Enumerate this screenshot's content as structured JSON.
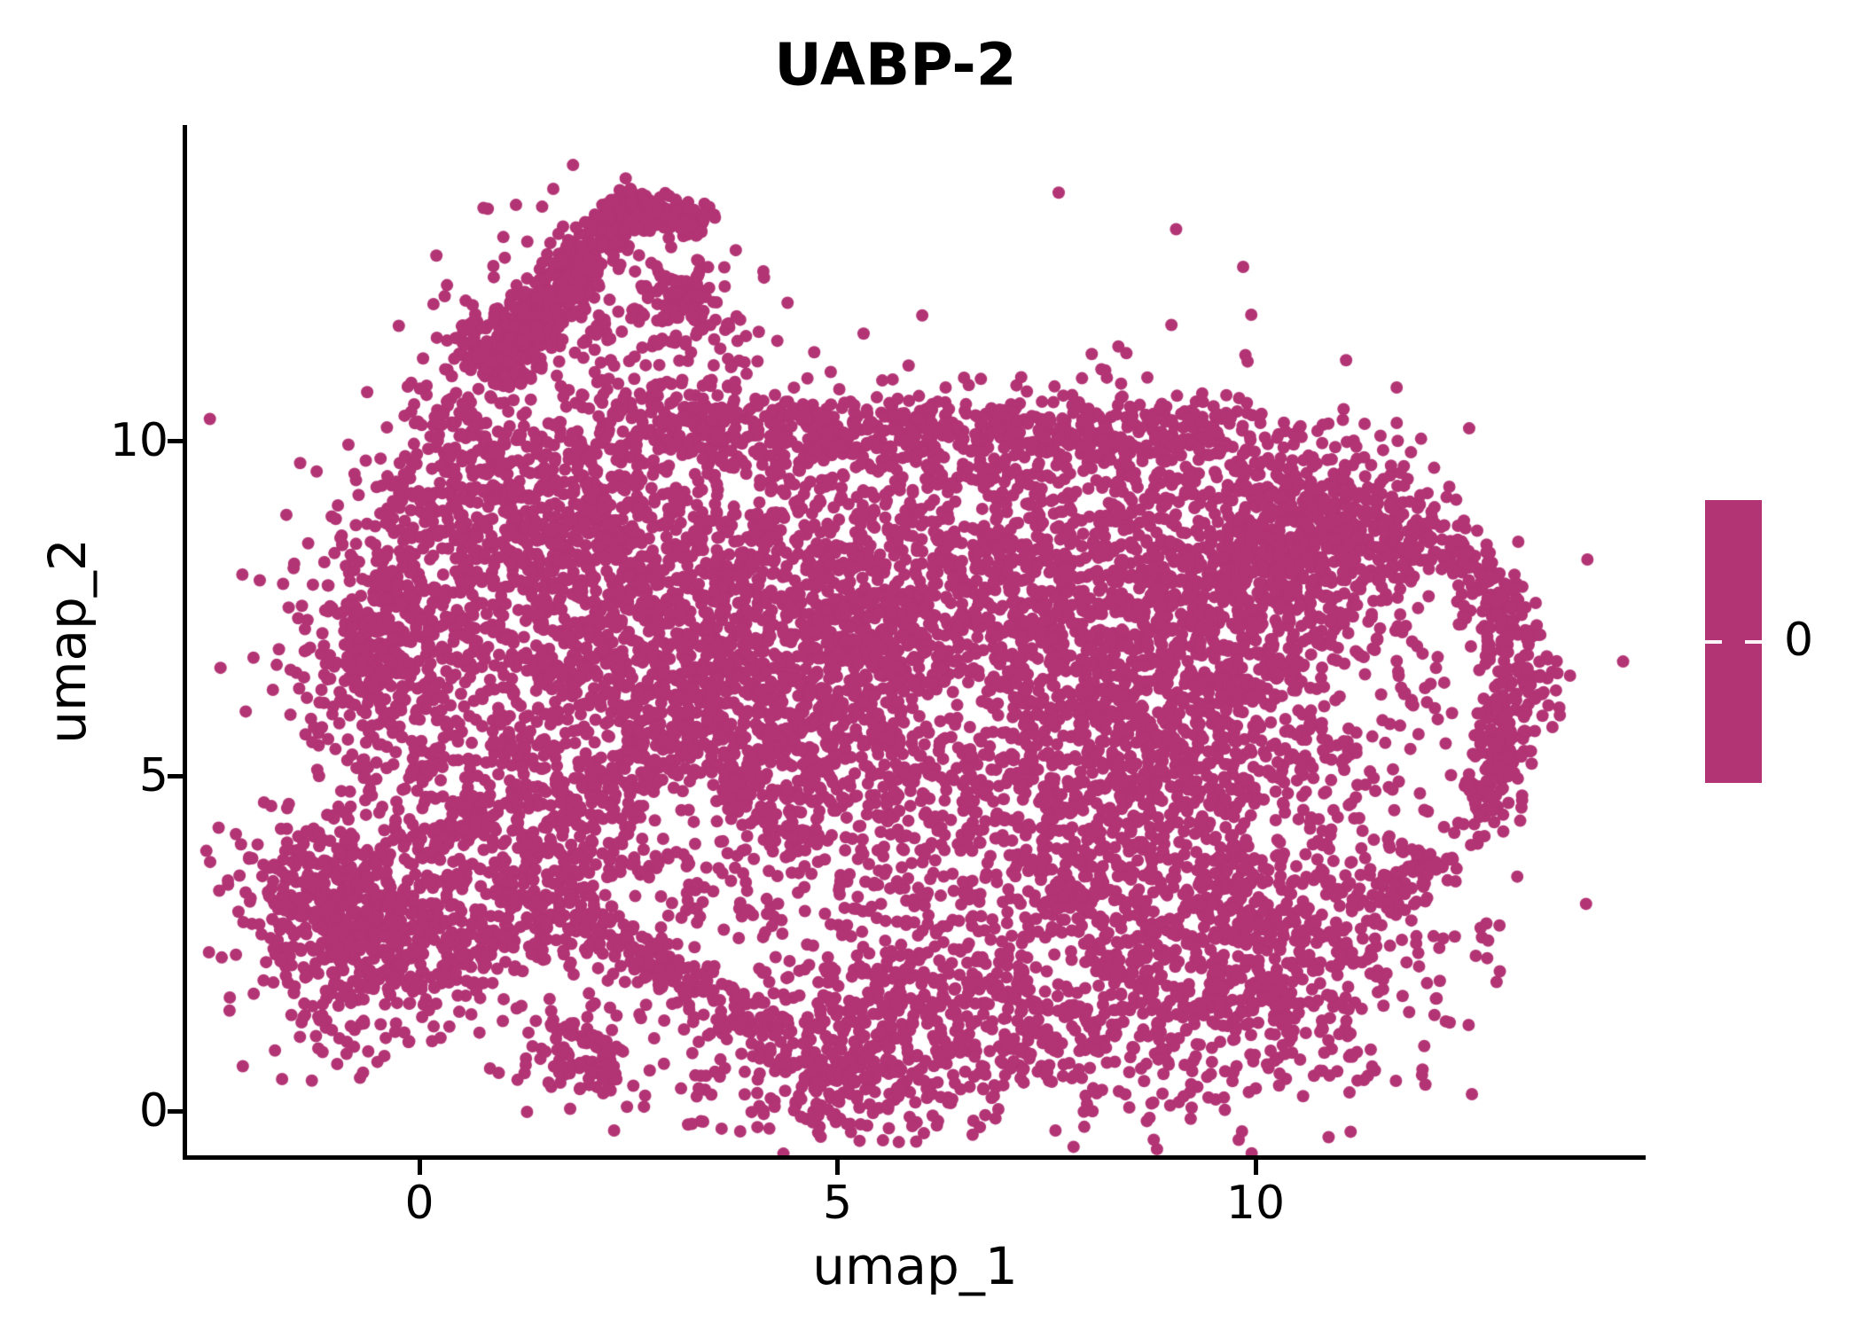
{
  "title": "UABP-2",
  "axes": {
    "x": {
      "label": "umap_1",
      "ticks": [
        "0",
        "5",
        "10"
      ],
      "tick_values": [
        0,
        5,
        10
      ]
    },
    "y": {
      "label": "umap_2",
      "ticks": [
        "0",
        "5",
        "10"
      ],
      "tick_values": [
        0,
        5,
        10
      ]
    }
  },
  "legend": {
    "label": "0",
    "color": "#B23474"
  },
  "chart_data": {
    "type": "scatter",
    "title": "UABP-2",
    "xlabel": "umap_1",
    "ylabel": "umap_2",
    "x_ticks": [
      0,
      5,
      10
    ],
    "y_ticks": [
      0,
      5,
      10
    ],
    "xlim": [
      -2.79,
      14.67
    ],
    "ylim": [
      -0.69,
      14.73
    ],
    "grid": false,
    "legend_position": "right",
    "legend_entries": [
      {
        "label": "0",
        "color": "#B23474"
      }
    ],
    "point_color": "#B23474",
    "point_radius_px": 7,
    "n_points_approx": 12500,
    "seed": 42,
    "description": "Single-color UMAP embedding (all cells expression level 0): large irregular central mass, diagonal upper-left arm, detached lower-left cluster, thin right rim with interior hole",
    "clusters": [
      {
        "kind": "segment",
        "name": "upper-arm-band",
        "x1": 0.85,
        "y1": 11.05,
        "x2": 2.45,
        "y2": 13.4,
        "jitter": 0.17,
        "n": 480
      },
      {
        "kind": "segment",
        "name": "upper-arm-hook",
        "x1": 2.45,
        "y1": 13.5,
        "x2": 3.35,
        "y2": 13.25,
        "jitter": 0.14,
        "n": 170
      },
      {
        "kind": "segment",
        "name": "main-top-band",
        "x1": 2.3,
        "y1": 10.15,
        "x2": 9.7,
        "y2": 10.1,
        "jitter": 0.3,
        "n": 650
      },
      {
        "kind": "segment",
        "name": "bottom-diagonal-band",
        "x1": 1.0,
        "y1": 3.45,
        "x2": 4.35,
        "y2": 1.15,
        "jitter": 0.2,
        "n": 240
      },
      {
        "kind": "segment",
        "name": "right-rim-1",
        "x1": 11.6,
        "y1": 9.05,
        "x2": 12.75,
        "y2": 7.9,
        "jitter": 0.22,
        "n": 120
      },
      {
        "kind": "segment",
        "name": "right-rim-2",
        "x1": 12.75,
        "y1": 7.9,
        "x2": 13.25,
        "y2": 6.55,
        "jitter": 0.22,
        "n": 110
      },
      {
        "kind": "segment",
        "name": "right-rim-3",
        "x1": 13.25,
        "y1": 6.55,
        "x2": 12.95,
        "y2": 5.2,
        "jitter": 0.22,
        "n": 100
      },
      {
        "kind": "segment",
        "name": "right-rim-4",
        "x1": 12.95,
        "y1": 5.2,
        "x2": 12.35,
        "y2": 4.05,
        "jitter": 0.22,
        "n": 90
      },
      {
        "kind": "segment",
        "name": "right-rim-5",
        "x1": 12.35,
        "y1": 4.05,
        "x2": 11.35,
        "y2": 3.15,
        "jitter": 0.25,
        "n": 90
      },
      {
        "kind": "segment",
        "name": "left-cluster-tail",
        "x1": -0.3,
        "y1": 3.85,
        "x2": 0.9,
        "y2": 4.5,
        "jitter": 0.2,
        "n": 70
      },
      {
        "kind": "gauss",
        "name": "arm-base",
        "cx": 0.95,
        "cy": 11.3,
        "sx": 0.3,
        "sy": 0.33,
        "n": 120
      },
      {
        "kind": "gauss",
        "name": "hook-drop",
        "cx": 3.2,
        "cy": 12.1,
        "sx": 0.22,
        "sy": 0.3,
        "n": 80
      },
      {
        "kind": "gauss",
        "name": "arm-scatter",
        "cx": 1.65,
        "cy": 11.6,
        "sx": 0.75,
        "sy": 0.95,
        "n": 150
      },
      {
        "kind": "gauss",
        "name": "arm-bridge-scatter",
        "cx": 2.95,
        "cy": 11.0,
        "sx": 0.75,
        "sy": 0.75,
        "n": 120
      },
      {
        "kind": "gauss",
        "name": "upper-left-column",
        "cx": 0.45,
        "cy": 10.0,
        "sx": 0.4,
        "sy": 0.6,
        "n": 100
      },
      {
        "kind": "gauss",
        "name": "upper-left-lobe",
        "cx": 1.6,
        "cy": 8.75,
        "sx": 1.05,
        "sy": 0.8,
        "n": 620
      },
      {
        "kind": "gauss",
        "name": "left-edge-lobe",
        "cx": -0.35,
        "cy": 6.9,
        "sx": 0.55,
        "sy": 0.95,
        "n": 430
      },
      {
        "kind": "gauss",
        "name": "mid-left-body",
        "cx": 2.2,
        "cy": 6.6,
        "sx": 1.2,
        "sy": 1.25,
        "n": 850
      },
      {
        "kind": "gauss",
        "name": "central-body",
        "cx": 4.8,
        "cy": 7.5,
        "sx": 1.35,
        "sy": 1.25,
        "n": 950
      },
      {
        "kind": "gauss",
        "name": "central-lower-body",
        "cx": 4.1,
        "cy": 5.0,
        "sx": 1.25,
        "sy": 1.0,
        "n": 650
      },
      {
        "kind": "gauss",
        "name": "right-body",
        "cx": 7.8,
        "cy": 7.4,
        "sx": 1.5,
        "sy": 1.35,
        "n": 1250
      },
      {
        "kind": "gauss",
        "name": "right-body-2",
        "cx": 9.8,
        "cy": 6.9,
        "sx": 1.0,
        "sy": 1.4,
        "n": 620
      },
      {
        "kind": "gauss",
        "name": "top-right-corner",
        "cx": 10.5,
        "cy": 9.2,
        "sx": 0.7,
        "sy": 0.6,
        "n": 280
      },
      {
        "kind": "gauss",
        "name": "right-lower-body",
        "cx": 8.6,
        "cy": 4.2,
        "sx": 1.55,
        "sy": 1.2,
        "n": 850
      },
      {
        "kind": "gauss",
        "name": "bottom-right-lobe",
        "cx": 9.8,
        "cy": 2.0,
        "sx": 1.25,
        "sy": 1.0,
        "n": 650
      },
      {
        "kind": "gauss",
        "name": "bottom-center-lobe",
        "cx": 6.4,
        "cy": 1.6,
        "sx": 1.35,
        "sy": 0.9,
        "n": 560
      },
      {
        "kind": "gauss",
        "name": "bottom-tip",
        "cx": 4.9,
        "cy": 0.65,
        "sx": 0.85,
        "sy": 0.55,
        "n": 260
      },
      {
        "kind": "gauss",
        "name": "left-lower-scatter",
        "cx": 1.35,
        "cy": 4.4,
        "sx": 0.85,
        "sy": 0.75,
        "n": 260
      },
      {
        "kind": "gauss",
        "name": "detached-left-a",
        "cx": -1.1,
        "cy": 3.1,
        "sx": 0.6,
        "sy": 0.68,
        "n": 380
      },
      {
        "kind": "gauss",
        "name": "detached-left-b",
        "cx": -0.15,
        "cy": 2.6,
        "sx": 0.6,
        "sy": 0.6,
        "n": 300
      },
      {
        "kind": "gauss",
        "name": "detached-left-low",
        "cx": -1.0,
        "cy": 1.3,
        "sx": 0.5,
        "sy": 0.35,
        "n": 45
      },
      {
        "kind": "gauss",
        "name": "small-bottom-cluster",
        "cx": 1.95,
        "cy": 0.9,
        "sx": 0.38,
        "sy": 0.4,
        "n": 100
      },
      {
        "kind": "gauss",
        "name": "bottom-left-bridge",
        "cx": 1.2,
        "cy": 2.7,
        "sx": 0.8,
        "sy": 0.75,
        "n": 120
      },
      {
        "kind": "gauss",
        "name": "right-rim-connector",
        "cx": 10.9,
        "cy": 8.3,
        "sx": 0.6,
        "sy": 0.6,
        "n": 200
      },
      {
        "kind": "gauss",
        "name": "rim-hole-scatter",
        "cx": 11.9,
        "cy": 6.1,
        "sx": 0.7,
        "sy": 0.95,
        "n": 70,
        "ignore_exclusions": true
      },
      {
        "kind": "gauss",
        "name": "overall-fill",
        "cx": 6.0,
        "cy": 6.0,
        "sx": 3.2,
        "sy": 2.8,
        "n": 350
      }
    ],
    "exclusions": [
      {
        "cx": 3.2,
        "cy": 4.5,
        "rx": 0.5,
        "ry": 0.5,
        "reject": 0.85
      },
      {
        "cx": 11.85,
        "cy": 6.0,
        "rx": 0.8,
        "ry": 1.15,
        "reject": 0.88
      },
      {
        "cx": 12.15,
        "cy": 4.35,
        "rx": 0.5,
        "ry": 0.5,
        "reject": 0.85
      },
      {
        "cx": 6.4,
        "cy": 6.0,
        "rx": 0.5,
        "ry": 0.45,
        "reject": 0.7
      },
      {
        "cx": 7.7,
        "cy": 2.1,
        "rx": 0.45,
        "ry": 0.5,
        "reject": 0.7
      },
      {
        "cx": 2.0,
        "cy": 5.6,
        "rx": 0.45,
        "ry": 0.4,
        "reject": 0.6
      }
    ]
  }
}
